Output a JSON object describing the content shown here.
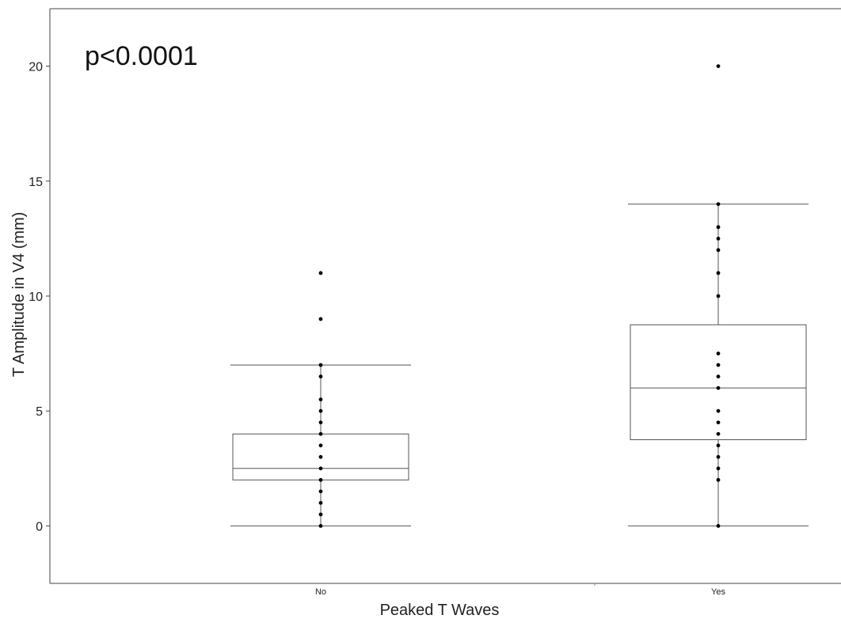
{
  "chart_data": {
    "type": "box",
    "title": "",
    "annotation": "p<0.0001",
    "xlabel": "Peaked T Waves",
    "ylabel": "T Amplitude in V4 (mm)",
    "ylim": [
      -2.5,
      22.5
    ],
    "y_ticks": [
      0,
      5,
      10,
      15,
      20
    ],
    "categories": [
      "No",
      "Yes"
    ],
    "boxes": [
      {
        "category": "No",
        "min": 0,
        "q1": 2,
        "median": 2.5,
        "q3": 4,
        "max": 7,
        "points": [
          0,
          0.5,
          1,
          1.5,
          2,
          2.5,
          3,
          3.5,
          4,
          4.5,
          5,
          5.5,
          6.5,
          7,
          9,
          11
        ]
      },
      {
        "category": "Yes",
        "min": 0,
        "q1": 3.75,
        "median": 6,
        "q3": 8.75,
        "max": 14,
        "points": [
          0,
          2,
          2.5,
          3,
          3.5,
          4,
          4.5,
          5,
          6,
          6.5,
          7,
          7.5,
          10,
          11,
          12,
          12.5,
          13,
          14,
          20
        ]
      }
    ],
    "grid": false,
    "legend": "none"
  }
}
